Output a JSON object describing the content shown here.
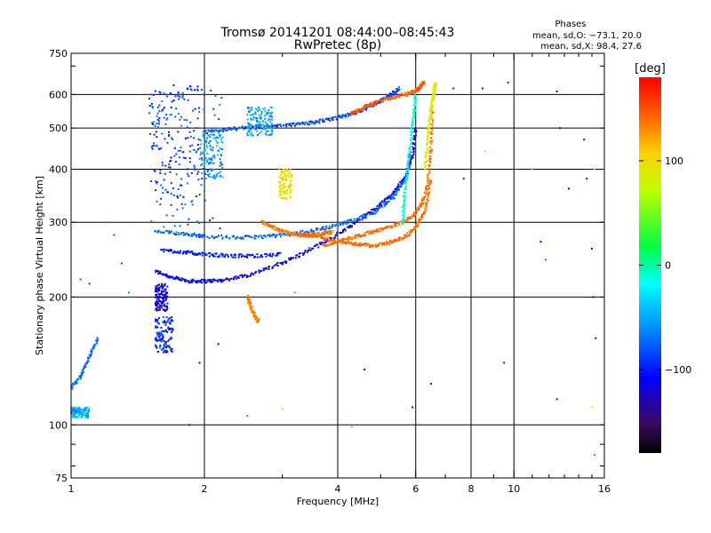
{
  "chart_data": {
    "type": "scatter",
    "title": "Tromsø 20141201 08:44:00–08:45:43",
    "subtitle": "RwPretec (8p)",
    "xlabel": "Frequency [MHz]",
    "ylabel": "Stationary phase Virtual Height [km]",
    "x_scale": "log",
    "y_scale": "log",
    "xlim": [
      1,
      16
    ],
    "ylim": [
      75,
      750
    ],
    "x_ticks": [
      1,
      2,
      4,
      6,
      8,
      10,
      16
    ],
    "x_tick_labels": [
      "1",
      "2",
      "4",
      "6",
      "8",
      "10",
      "16"
    ],
    "y_ticks": [
      75,
      100,
      200,
      300,
      400,
      500,
      600,
      750
    ],
    "y_tick_labels": [
      "75",
      "100",
      "200",
      "300",
      "400",
      "500",
      "600",
      "750"
    ],
    "grid": true,
    "stats": {
      "heading": "Phases",
      "line_o": "mean, sd,O: −73.1, 20.0",
      "line_x": "mean, sd,X:  98.4, 27.6"
    },
    "colorbar": {
      "label": "[deg]",
      "min": -180,
      "max": 180,
      "ticks": [
        100,
        0,
        -100
      ],
      "tick_labels": [
        "100",
        "0",
        "−100"
      ],
      "colormap": "rainbow"
    },
    "series": [
      {
        "kind": "curve",
        "phase": -110,
        "x": [
          1.55,
          1.7,
          1.85,
          2.0,
          2.2,
          2.5,
          2.9,
          3.3,
          3.8,
          4.3,
          4.9,
          5.4,
          5.7,
          5.9,
          6.0
        ],
        "y": [
          230,
          222,
          218,
          218,
          219,
          225,
          237,
          252,
          272,
          295,
          325,
          355,
          385,
          430,
          500
        ]
      },
      {
        "kind": "curve",
        "phase": -75,
        "x": [
          1.55,
          1.8,
          2.0,
          2.4,
          2.8,
          3.2,
          3.7,
          4.2,
          4.8,
          5.3,
          5.7,
          5.85
        ],
        "y": [
          285,
          282,
          278,
          276,
          278,
          282,
          290,
          300,
          315,
          340,
          380,
          440
        ]
      },
      {
        "kind": "curve",
        "phase": -100,
        "x": [
          1.6,
          1.8,
          2.0,
          2.3,
          2.6,
          3.0
        ],
        "y": [
          258,
          255,
          252,
          250,
          250,
          252
        ]
      },
      {
        "kind": "curve",
        "phase": -85,
        "x": [
          2.0,
          2.3,
          2.7,
          3.1,
          3.5,
          3.9,
          4.3,
          4.7,
          5.0,
          5.3,
          5.5
        ],
        "y": [
          488,
          498,
          502,
          508,
          515,
          525,
          540,
          560,
          580,
          600,
          620
        ]
      },
      {
        "kind": "curve",
        "phase": 145,
        "x": [
          4.3,
          4.6,
          4.9,
          5.3,
          5.7,
          6.0,
          6.15,
          6.25
        ],
        "y": [
          540,
          560,
          575,
          590,
          600,
          610,
          625,
          640
        ]
      },
      {
        "kind": "curve",
        "phase": 140,
        "x": [
          3.7,
          4.0,
          4.3,
          4.7,
          5.1,
          5.5,
          5.9,
          6.2,
          6.4,
          6.5,
          6.55
        ],
        "y": [
          265,
          270,
          276,
          283,
          290,
          298,
          310,
          330,
          370,
          450,
          560
        ]
      },
      {
        "kind": "curve",
        "phase": 135,
        "x": [
          2.7,
          2.9,
          3.1,
          3.3,
          3.5,
          3.7,
          3.9
        ],
        "y": [
          300,
          290,
          283,
          280,
          280,
          282,
          285
        ]
      },
      {
        "kind": "curve",
        "phase": 140,
        "x": [
          3.3,
          3.6,
          3.9,
          4.2,
          4.5,
          4.8,
          5.2,
          5.6,
          6.0,
          6.3,
          6.5
        ],
        "y": [
          280,
          278,
          272,
          268,
          266,
          264,
          268,
          275,
          290,
          320,
          380
        ]
      },
      {
        "kind": "curve",
        "phase": 85,
        "x": [
          6.3,
          6.35,
          6.45,
          6.55,
          6.6,
          6.65
        ],
        "y": [
          400,
          450,
          520,
          580,
          610,
          640
        ]
      },
      {
        "kind": "curve",
        "phase": -10,
        "x": [
          5.6,
          5.65,
          5.75,
          5.85,
          5.95,
          6.0
        ],
        "y": [
          300,
          340,
          400,
          470,
          540,
          600
        ]
      },
      {
        "kind": "curve",
        "phase": 135,
        "x": [
          2.5,
          2.55,
          2.6,
          2.65
        ],
        "y": [
          200,
          190,
          180,
          175
        ]
      },
      {
        "kind": "curve",
        "phase": -70,
        "x": [
          1.0,
          1.05,
          1.1,
          1.15
        ],
        "y": [
          122,
          130,
          145,
          160
        ]
      },
      {
        "kind": "cluster",
        "phase": -90,
        "x": [
          1.5,
          1.95
        ],
        "y": [
          340,
          640
        ]
      },
      {
        "kind": "cluster",
        "phase": -80,
        "x": [
          1.5,
          2.2
        ],
        "y": [
          290,
          620
        ]
      },
      {
        "kind": "cluster",
        "phase": -55,
        "x": [
          1.95,
          2.2
        ],
        "y": [
          380,
          500
        ]
      },
      {
        "kind": "cluster",
        "phase": -55,
        "x": [
          2.5,
          2.85
        ],
        "y": [
          480,
          560
        ]
      },
      {
        "kind": "cluster",
        "phase": 95,
        "x": [
          2.95,
          3.15
        ],
        "y": [
          340,
          400
        ]
      },
      {
        "kind": "cluster",
        "phase": -120,
        "x": [
          1.55,
          1.65
        ],
        "y": [
          185,
          215
        ]
      },
      {
        "kind": "cluster",
        "phase": -95,
        "x": [
          1.55,
          1.7
        ],
        "y": [
          148,
          180
        ]
      },
      {
        "kind": "cluster",
        "phase": -50,
        "x": [
          1.0,
          1.1
        ],
        "y": [
          104,
          110
        ]
      }
    ]
  }
}
